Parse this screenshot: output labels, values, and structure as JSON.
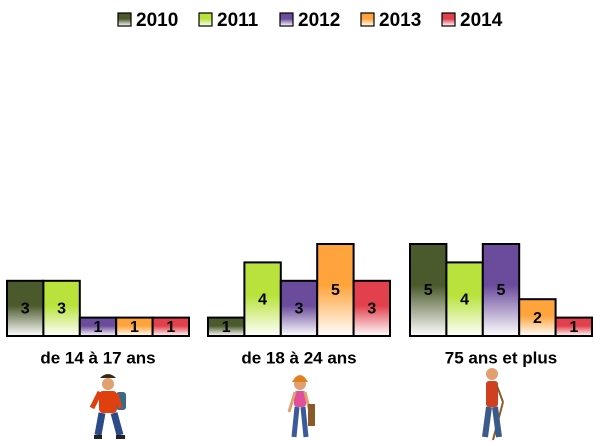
{
  "chart_data": {
    "type": "bar",
    "categories": [
      "de 14 à 17 ans",
      "de 18 à 24 ans",
      "75 ans et plus"
    ],
    "series": [
      {
        "name": "2010",
        "color": "#4b5a2c",
        "values": [
          3,
          1,
          5
        ]
      },
      {
        "name": "2011",
        "color": "#b9e23c",
        "values": [
          3,
          4,
          4
        ]
      },
      {
        "name": "2012",
        "color": "#6b4c9c",
        "values": [
          1,
          3,
          5
        ]
      },
      {
        "name": "2013",
        "color": "#ffa43c",
        "values": [
          1,
          5,
          2
        ]
      },
      {
        "name": "2014",
        "color": "#e2404c",
        "values": [
          1,
          3,
          1
        ]
      }
    ],
    "legend": "top"
  }
}
